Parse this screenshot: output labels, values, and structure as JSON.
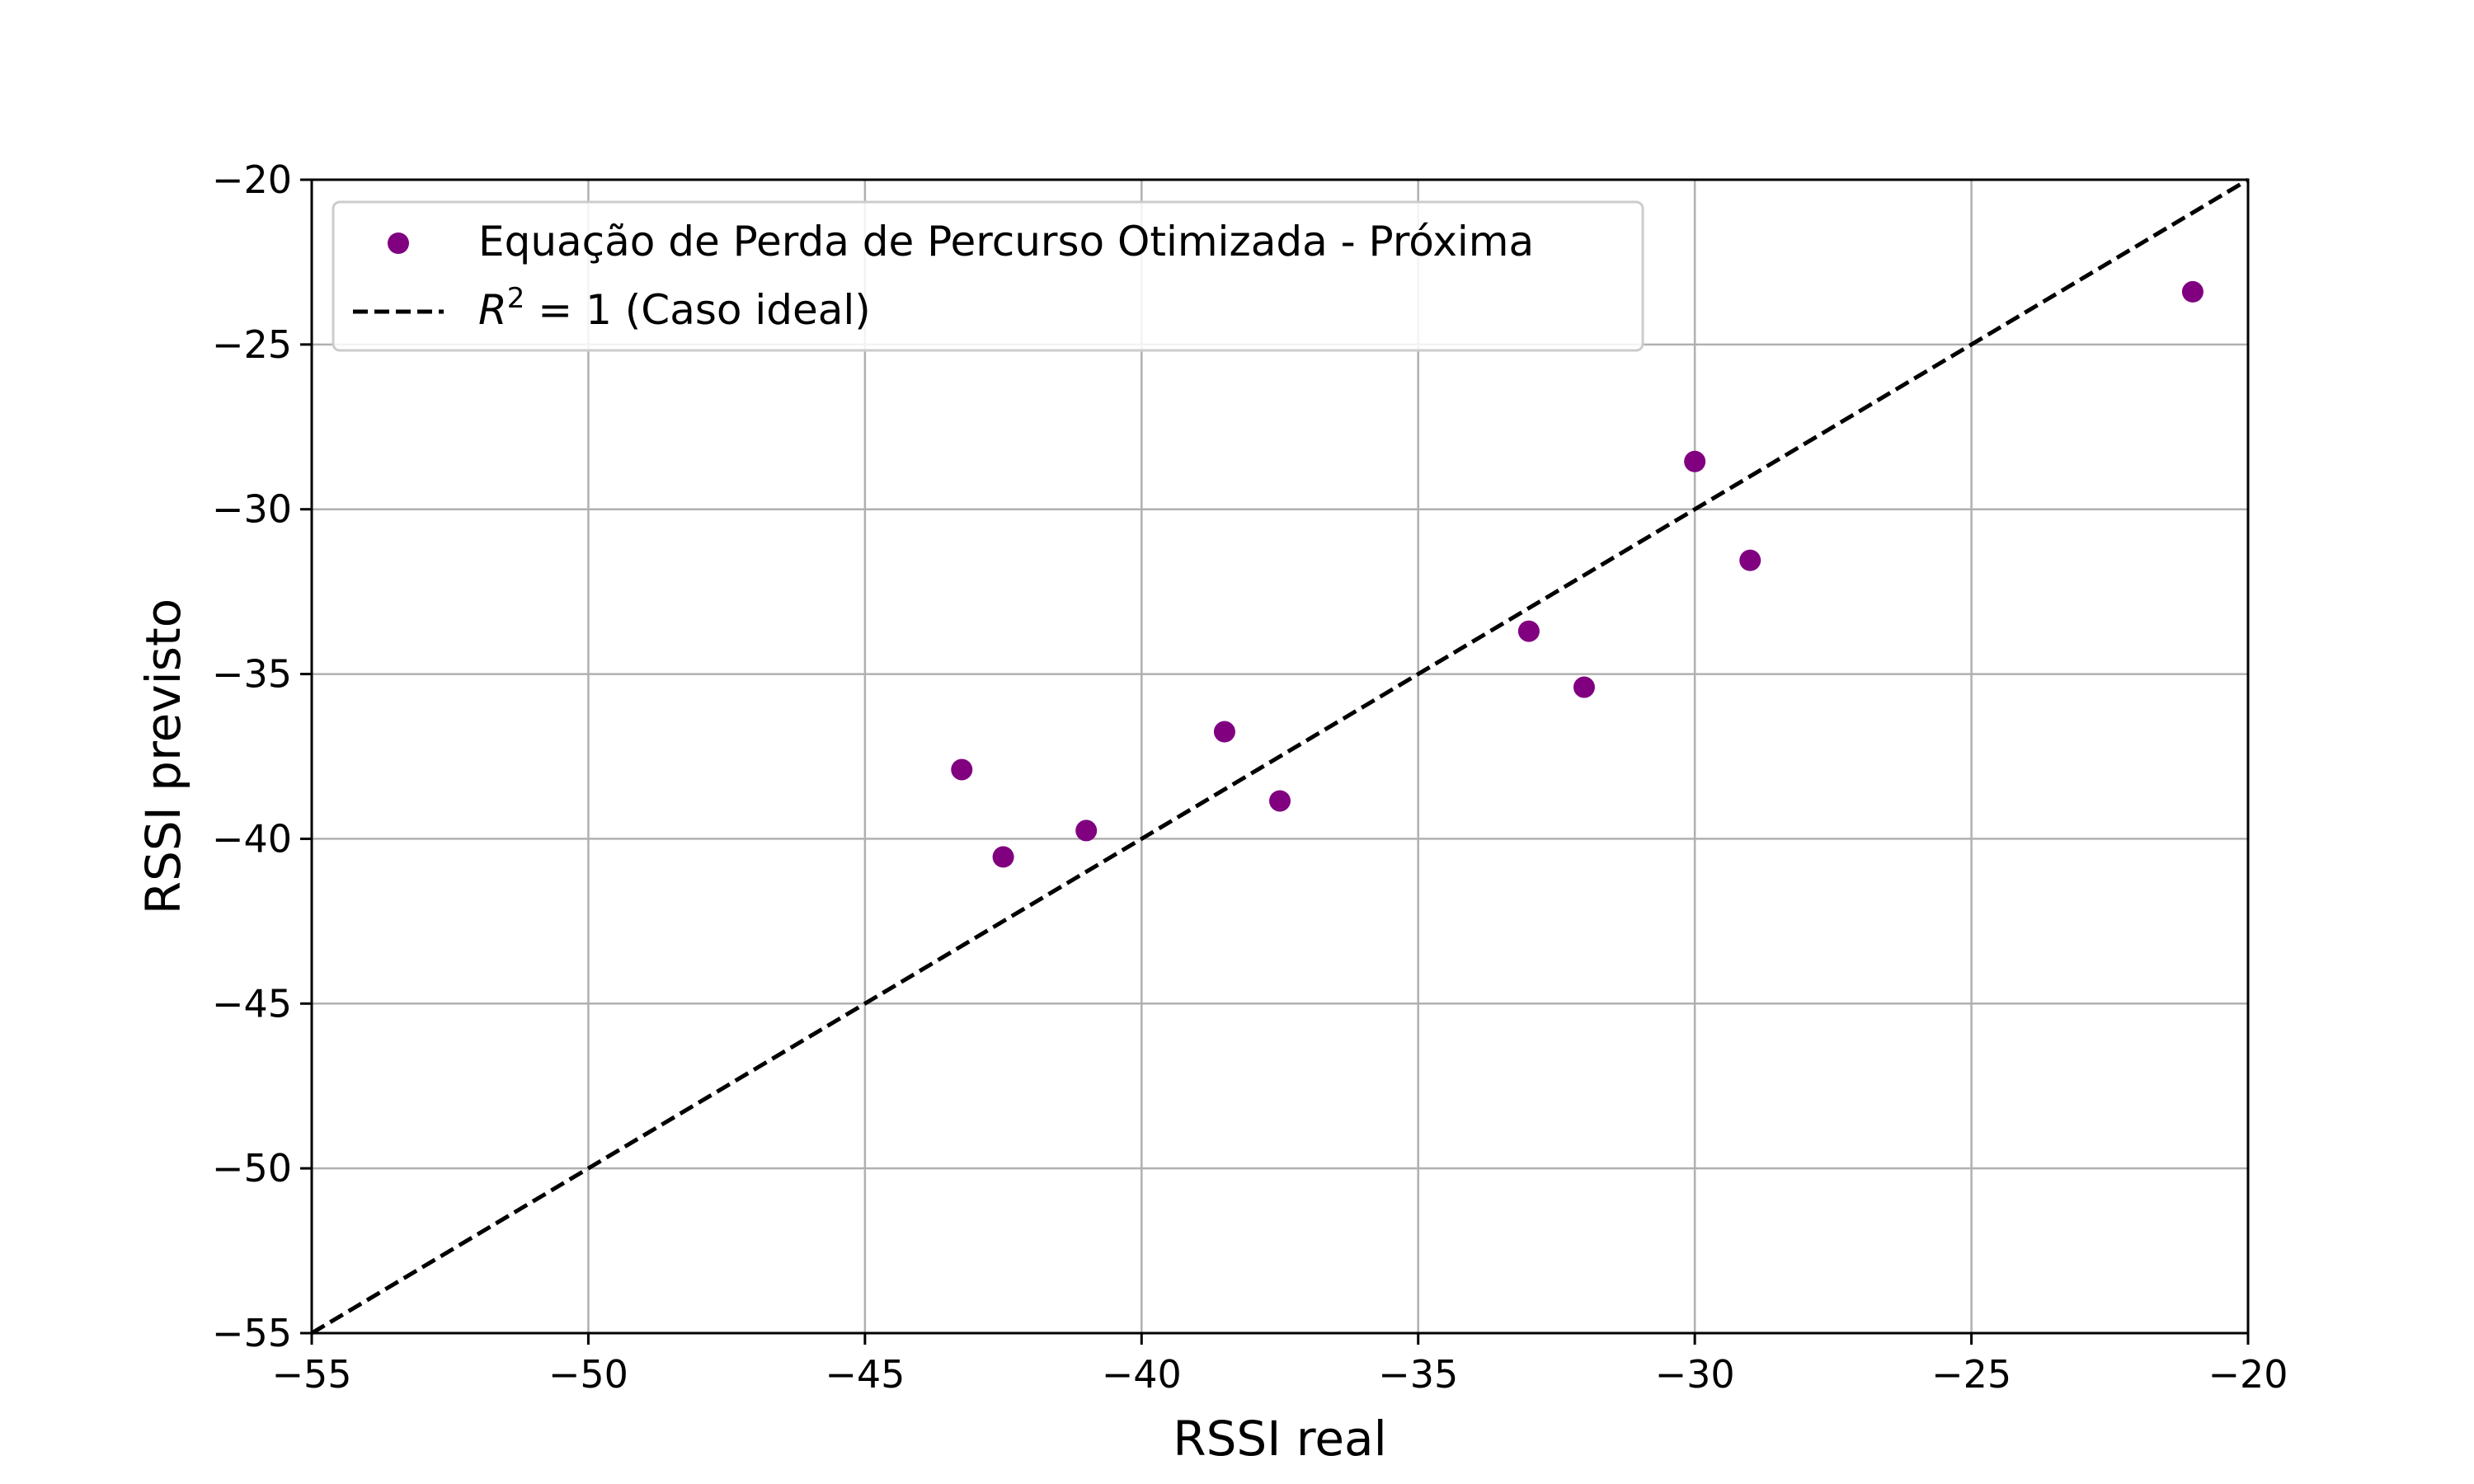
{
  "chart_data": {
    "type": "scatter",
    "xlabel": "RSSI real",
    "ylabel": "RSSI previsto",
    "xlim": [
      -55,
      -20
    ],
    "ylim": [
      -55,
      -20
    ],
    "x_ticks": [
      -55,
      -50,
      -45,
      -40,
      -35,
      -30,
      -25,
      -20
    ],
    "y_ticks": [
      -55,
      -50,
      -45,
      -40,
      -35,
      -30,
      -25,
      -20
    ],
    "grid": true,
    "legend_position": "upper-left",
    "series": [
      {
        "name": "Equação de Perda de Percurso Otimizada - Próxima",
        "color": "#800080",
        "marker": "circle",
        "points": [
          {
            "x": -43.25,
            "y": -37.9
          },
          {
            "x": -42.5,
            "y": -40.55
          },
          {
            "x": -41.0,
            "y": -39.75
          },
          {
            "x": -38.5,
            "y": -36.75
          },
          {
            "x": -37.5,
            "y": -38.85
          },
          {
            "x": -33.0,
            "y": -33.7
          },
          {
            "x": -32.0,
            "y": -35.4
          },
          {
            "x": -30.0,
            "y": -28.55
          },
          {
            "x": -29.0,
            "y": -31.55
          },
          {
            "x": -21.0,
            "y": -23.4
          }
        ]
      }
    ],
    "reference_line": {
      "label_prefix": "R",
      "label_superscript": "2",
      "label_suffix": " = 1 (Caso ideal)",
      "style": "dashed",
      "color": "#000000",
      "from": {
        "x": -55,
        "y": -55
      },
      "to": {
        "x": -20,
        "y": -20
      }
    }
  }
}
